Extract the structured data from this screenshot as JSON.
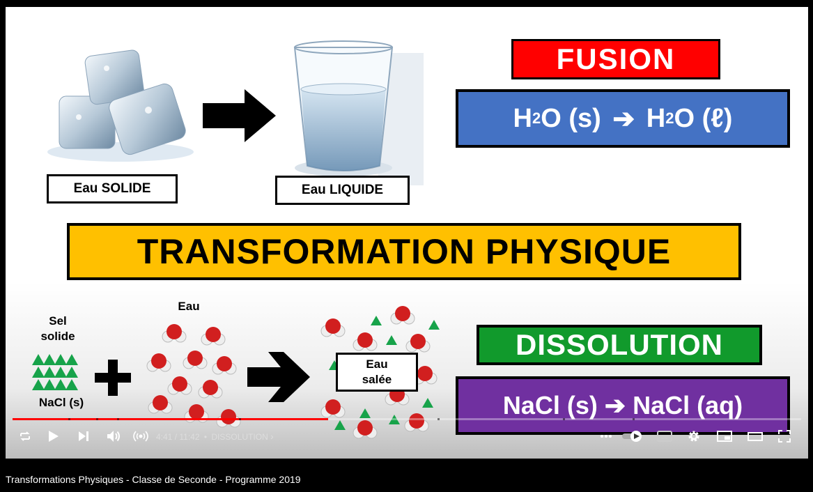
{
  "slide": {
    "solid_label": "Eau SOLIDE",
    "liquid_label": "Eau LIQUIDE",
    "fusion_label": "FUSION",
    "eq1": {
      "left": "H",
      "left_sub": "2",
      "left_rest": "O (s) ",
      "arrow": "➔",
      "right": " H",
      "right_sub": "2",
      "right_rest": "O (ℓ)"
    },
    "title": "TRANSFORMATION PHYSIQUE",
    "salt_label_line1": "Sel",
    "salt_label_line2": "solide",
    "nacl_label": "NaCl (s)",
    "water_label": "Eau",
    "plus_sign": "+",
    "salty_water_line1": "Eau",
    "salty_water_line2": "salée",
    "dissolution_label": "DISSOLUTION",
    "eq2": "NaCl (s) ➔ NaCl (aq)"
  },
  "player": {
    "progress_percent": 40,
    "time_current": "4:41",
    "time_total": "11:42",
    "time_sep": " / ",
    "bullet": "•",
    "chapter": "DISSOLUTION",
    "chapter_chevron": "›",
    "icons": [
      "loop-icon",
      "play-icon",
      "next-icon",
      "volume-icon",
      "live-icon",
      "more-icon",
      "autoplay-toggle",
      "cc-icon",
      "gear-icon",
      "miniplayer-icon",
      "theater-icon",
      "fullscreen-icon"
    ]
  },
  "video_title": "Transformations Physiques - Classe de Seconde - Programme 2019"
}
